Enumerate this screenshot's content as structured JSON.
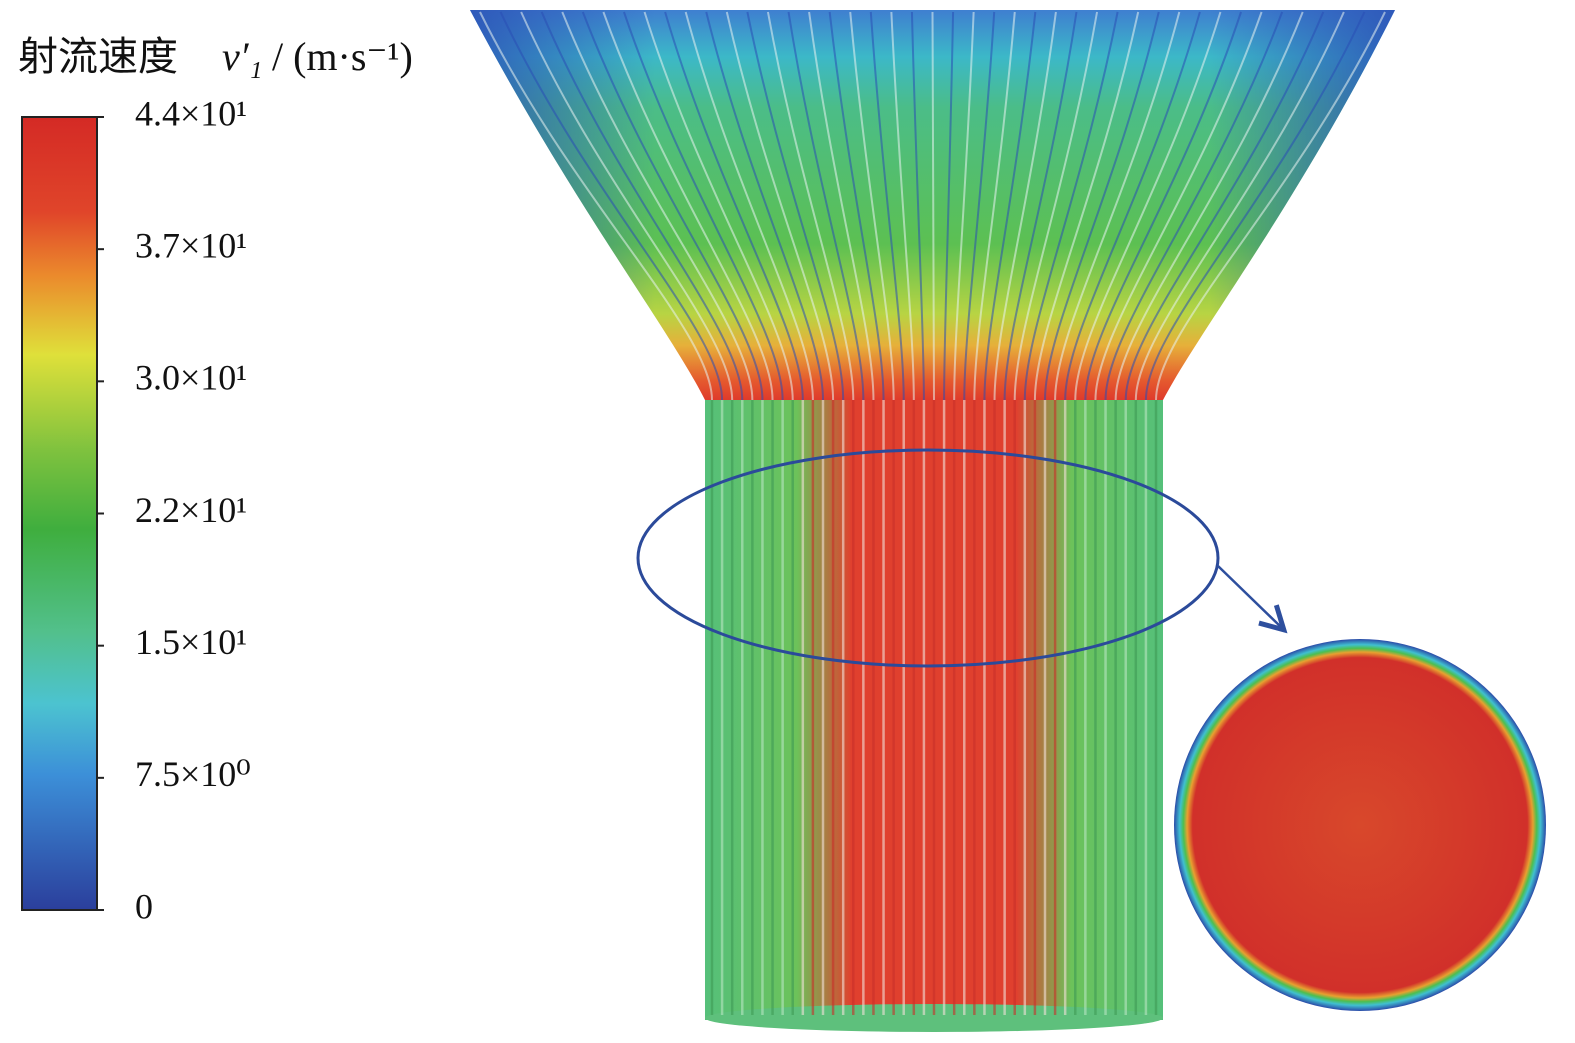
{
  "colorbar": {
    "title": {
      "quantity": "射流速度",
      "symbol": "v′₁",
      "unit": "/ (m·s⁻¹)"
    },
    "tick_labels": [
      "4.4×10¹",
      "3.7×10¹",
      "3.0×10¹",
      "2.2×10¹",
      "1.5×10¹",
      "7.5×10⁰",
      "0"
    ]
  }
}
